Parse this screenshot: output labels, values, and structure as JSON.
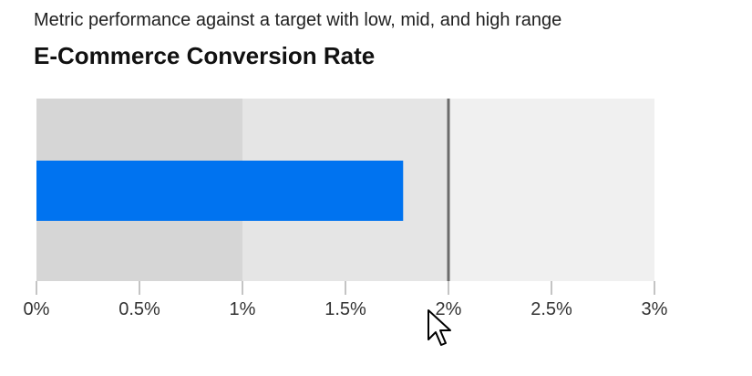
{
  "header": {
    "subtitle": "Metric performance against a target with low, mid, and high range",
    "title": "E-Commerce Conversion Rate"
  },
  "chart_data": {
    "type": "bullet",
    "title": "E-Commerce Conversion Rate",
    "subtitle": "Metric performance against a target with low, mid, and high range",
    "value": 1.78,
    "target": 2.0,
    "unit": "%",
    "ranges": [
      {
        "name": "low",
        "from": 0,
        "to": 1,
        "color": "#d6d6d6"
      },
      {
        "name": "mid",
        "from": 1,
        "to": 2,
        "color": "#e5e5e5"
      },
      {
        "name": "high",
        "from": 2,
        "to": 3,
        "color": "#f0f0f0"
      }
    ],
    "xlim": [
      0,
      3
    ],
    "ticks": [
      0,
      0.5,
      1,
      1.5,
      2,
      2.5,
      3
    ],
    "tick_labels": [
      "0%",
      "0.5%",
      "1%",
      "1.5%",
      "2%",
      "2.5%",
      "3%"
    ],
    "colors": {
      "measure": "#0073f0",
      "target": "#6b6b6b",
      "axis": "#888888"
    }
  }
}
